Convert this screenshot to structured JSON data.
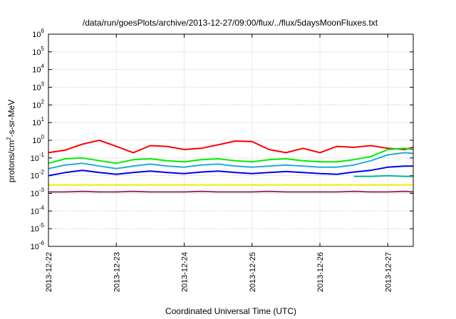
{
  "chart_data": {
    "type": "line",
    "title": "/data/run/goesPlots/archive/2013-12-27/09:00/flux/../flux/5daysMoonFluxes.txt",
    "xlabel": "Coordinated Universal Time (UTC)",
    "ylabel": "protons/cm²-s-sr-MeV",
    "ylabel_base": "protons/cm",
    "ylabel_sup": "2",
    "ylabel_rest": "-s-sr-MeV",
    "yscale": "log",
    "ylim": [
      1e-06,
      1000000.0
    ],
    "xlim": [
      "2013-12-22T00:00",
      "2013-12-27T09:00"
    ],
    "grid": true,
    "x_ticks": [
      "2013-12-22",
      "2013-12-23",
      "2013-12-24",
      "2013-12-25",
      "2013-12-26",
      "2013-12-27"
    ],
    "y_ticks": [
      {
        "base": "10",
        "exp": "-6"
      },
      {
        "base": "10",
        "exp": "-5"
      },
      {
        "base": "10",
        "exp": "-4"
      },
      {
        "base": "10",
        "exp": "-3"
      },
      {
        "base": "10",
        "exp": "-2"
      },
      {
        "base": "10",
        "exp": "-1"
      },
      {
        "base": "10",
        "exp": "0"
      },
      {
        "base": "10",
        "exp": "1"
      },
      {
        "base": "10",
        "exp": "2"
      },
      {
        "base": "10",
        "exp": "3"
      },
      {
        "base": "10",
        "exp": "4"
      },
      {
        "base": "10",
        "exp": "5"
      },
      {
        "base": "10",
        "exp": "6"
      }
    ],
    "series": [
      {
        "color": "#ff0000",
        "x": [
          "2013-12-22T00:00",
          "2013-12-22T06:00",
          "2013-12-22T12:00",
          "2013-12-22T18:00",
          "2013-12-23T00:00",
          "2013-12-23T06:00",
          "2013-12-23T12:00",
          "2013-12-23T18:00",
          "2013-12-24T00:00",
          "2013-12-24T06:00",
          "2013-12-24T12:00",
          "2013-12-24T18:00",
          "2013-12-25T00:00",
          "2013-12-25T06:00",
          "2013-12-25T12:00",
          "2013-12-25T18:00",
          "2013-12-26T00:00",
          "2013-12-26T06:00",
          "2013-12-26T12:00",
          "2013-12-26T18:00",
          "2013-12-27T00:00",
          "2013-12-27T06:00",
          "2013-12-27T09:00"
        ],
        "values": [
          0.2,
          0.28,
          0.6,
          1.0,
          0.45,
          0.2,
          0.5,
          0.45,
          0.3,
          0.35,
          0.55,
          0.9,
          0.85,
          0.3,
          0.2,
          0.35,
          0.2,
          0.45,
          0.4,
          0.5,
          0.35,
          0.3,
          0.4
        ]
      },
      {
        "color": "#00ee00",
        "x": [
          "2013-12-22T00:00",
          "2013-12-22T06:00",
          "2013-12-22T12:00",
          "2013-12-22T18:00",
          "2013-12-23T00:00",
          "2013-12-23T06:00",
          "2013-12-23T12:00",
          "2013-12-23T18:00",
          "2013-12-24T00:00",
          "2013-12-24T06:00",
          "2013-12-24T12:00",
          "2013-12-24T18:00",
          "2013-12-25T00:00",
          "2013-12-25T06:00",
          "2013-12-25T12:00",
          "2013-12-25T18:00",
          "2013-12-26T00:00",
          "2013-12-26T06:00",
          "2013-12-26T12:00",
          "2013-12-26T18:00",
          "2013-12-27T00:00",
          "2013-12-27T06:00",
          "2013-12-27T09:00"
        ],
        "values": [
          0.05,
          0.09,
          0.1,
          0.07,
          0.05,
          0.08,
          0.09,
          0.07,
          0.06,
          0.08,
          0.09,
          0.07,
          0.06,
          0.08,
          0.09,
          0.07,
          0.06,
          0.06,
          0.08,
          0.12,
          0.3,
          0.35,
          0.3
        ]
      },
      {
        "color": "#22aadd",
        "x": [
          "2013-12-22T00:00",
          "2013-12-22T06:00",
          "2013-12-22T12:00",
          "2013-12-22T18:00",
          "2013-12-23T00:00",
          "2013-12-23T06:00",
          "2013-12-23T12:00",
          "2013-12-23T18:00",
          "2013-12-24T00:00",
          "2013-12-24T06:00",
          "2013-12-24T12:00",
          "2013-12-24T18:00",
          "2013-12-25T00:00",
          "2013-12-25T06:00",
          "2013-12-25T12:00",
          "2013-12-25T18:00",
          "2013-12-26T00:00",
          "2013-12-26T06:00",
          "2013-12-26T12:00",
          "2013-12-26T18:00",
          "2013-12-27T00:00",
          "2013-12-27T06:00",
          "2013-12-27T09:00"
        ],
        "values": [
          0.025,
          0.04,
          0.05,
          0.035,
          0.025,
          0.035,
          0.045,
          0.035,
          0.03,
          0.04,
          0.045,
          0.035,
          0.03,
          0.035,
          0.04,
          0.035,
          0.03,
          0.03,
          0.04,
          0.07,
          0.15,
          0.2,
          0.18
        ]
      },
      {
        "color": "#0000ee",
        "x": [
          "2013-12-22T00:00",
          "2013-12-22T06:00",
          "2013-12-22T12:00",
          "2013-12-22T18:00",
          "2013-12-23T00:00",
          "2013-12-23T06:00",
          "2013-12-23T12:00",
          "2013-12-23T18:00",
          "2013-12-24T00:00",
          "2013-12-24T06:00",
          "2013-12-24T12:00",
          "2013-12-24T18:00",
          "2013-12-25T00:00",
          "2013-12-25T06:00",
          "2013-12-25T12:00",
          "2013-12-25T18:00",
          "2013-12-26T00:00",
          "2013-12-26T06:00",
          "2013-12-26T12:00",
          "2013-12-26T18:00",
          "2013-12-27T00:00",
          "2013-12-27T06:00",
          "2013-12-27T09:00"
        ],
        "values": [
          0.01,
          0.015,
          0.02,
          0.015,
          0.012,
          0.015,
          0.018,
          0.015,
          0.013,
          0.016,
          0.018,
          0.015,
          0.013,
          0.015,
          0.017,
          0.015,
          0.013,
          0.012,
          0.016,
          0.02,
          0.03,
          0.035,
          0.035
        ]
      },
      {
        "color": "#00bb99",
        "x": [
          "2013-12-26T12:00",
          "2013-12-26T18:00",
          "2013-12-27T00:00",
          "2013-12-27T06:00",
          "2013-12-27T09:00"
        ],
        "values": [
          0.009,
          0.009,
          0.01,
          0.009,
          0.009
        ]
      },
      {
        "color": "#eeee00",
        "x": [
          "2013-12-22T00:00",
          "2013-12-23T00:00",
          "2013-12-24T00:00",
          "2013-12-25T00:00",
          "2013-12-26T00:00",
          "2013-12-27T00:00",
          "2013-12-27T09:00"
        ],
        "values": [
          0.003,
          0.003,
          0.003,
          0.003,
          0.003,
          0.003,
          0.003
        ]
      },
      {
        "color": "#993366",
        "x": [
          "2013-12-22T00:00",
          "2013-12-22T06:00",
          "2013-12-22T12:00",
          "2013-12-22T18:00",
          "2013-12-23T00:00",
          "2013-12-23T06:00",
          "2013-12-23T12:00",
          "2013-12-23T18:00",
          "2013-12-24T00:00",
          "2013-12-24T06:00",
          "2013-12-24T12:00",
          "2013-12-24T18:00",
          "2013-12-25T00:00",
          "2013-12-25T06:00",
          "2013-12-25T12:00",
          "2013-12-25T18:00",
          "2013-12-26T00:00",
          "2013-12-26T06:00",
          "2013-12-26T12:00",
          "2013-12-26T18:00",
          "2013-12-27T00:00",
          "2013-12-27T06:00",
          "2013-12-27T09:00"
        ],
        "values": [
          0.0012,
          0.0012,
          0.0013,
          0.0012,
          0.0012,
          0.0013,
          0.0012,
          0.0012,
          0.0012,
          0.0013,
          0.0012,
          0.0012,
          0.0012,
          0.0013,
          0.0012,
          0.0012,
          0.0012,
          0.0012,
          0.0013,
          0.0012,
          0.0012,
          0.0013,
          0.0012
        ]
      }
    ]
  }
}
